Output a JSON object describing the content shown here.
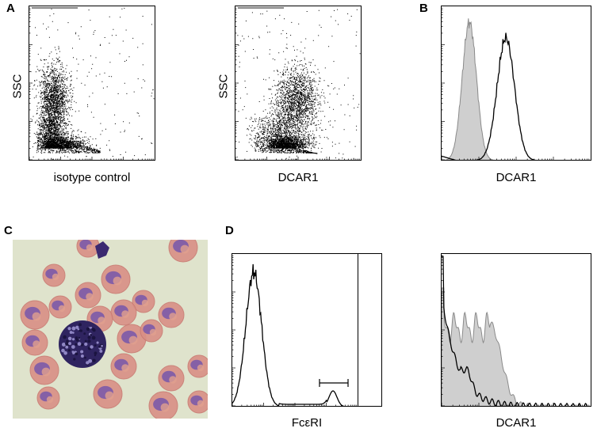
{
  "figure": {
    "panels": {
      "A": {
        "letter": "A",
        "plots": [
          {
            "ylabel": "SSC",
            "xlabel": "isotype control"
          },
          {
            "ylabel": "SSC",
            "xlabel": "DCAR1"
          }
        ]
      },
      "B": {
        "letter": "B",
        "xlabel": "DCAR1"
      },
      "C": {
        "letter": "C"
      },
      "D": {
        "letter": "D",
        "plots": [
          {
            "xlabel": "FcεRI"
          },
          {
            "xlabel": "DCAR1"
          }
        ]
      }
    },
    "colors": {
      "shaded_histogram_fill": "#cfcfcf",
      "shaded_histogram_line": "#8a8a8a",
      "line_histogram": "#000000",
      "stain_purple": "#5b3d8f",
      "stain_pink": "#d98f86",
      "micrograph_bg": "#dfe3cc"
    }
  }
}
